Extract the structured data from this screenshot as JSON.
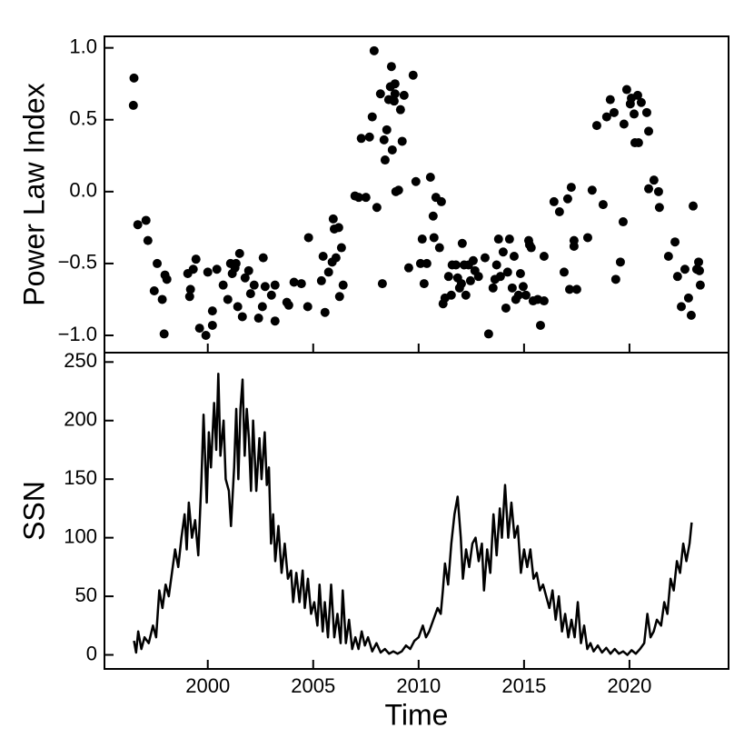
{
  "chart_data": [
    {
      "type": "scatter",
      "ylabel": "Power Law Index",
      "color": "#000000",
      "xlim": [
        1995.1,
        2024.7
      ],
      "xticks": [
        2000,
        2005,
        2010,
        2015,
        2020
      ],
      "xtick_labels": false,
      "ylim": [
        -1.12,
        1.08
      ],
      "yticks": [
        {
          "value": -1,
          "label": "−1.0"
        },
        {
          "value": -0.5,
          "label": "−0.5"
        },
        {
          "value": 0,
          "label": "0.0"
        },
        {
          "value": 0.5,
          "label": "0.5"
        },
        {
          "value": 1,
          "label": "1.0"
        }
      ],
      "x": [
        1996.47,
        1996.5,
        1996.68,
        1997.07,
        1997.16,
        1997.46,
        1997.6,
        1997.84,
        1997.93,
        1997.97,
        1998.06,
        1999.05,
        1999.14,
        1999.18,
        1999.31,
        1999.44,
        1999.61,
        1999.91,
        2000,
        2000.22,
        2000.22,
        2000.43,
        2000.73,
        2000.95,
        2001.08,
        2001.16,
        2001.29,
        2001.34,
        2001.42,
        2001.51,
        2001.64,
        2001.77,
        2001.94,
        2002.03,
        2002.2,
        2002.41,
        2002.59,
        2002.63,
        2002.72,
        2003.02,
        2003.19,
        2003.19,
        2003.75,
        2003.84,
        2004.09,
        2004.44,
        2004.78,
        2004.74,
        2005.39,
        2005.47,
        2005.56,
        2005.73,
        2005.9,
        2005.95,
        2006.0,
        2006.08,
        2006.21,
        2006.25,
        2006.34,
        2006.42,
        2006.98,
        2007.16,
        2007.28,
        2007.5,
        2007.67,
        2007.8,
        2007.89,
        2008.02,
        2008.19,
        2008.28,
        2008.36,
        2008.41,
        2008.49,
        2008.58,
        2008.66,
        2008.71,
        2008.75,
        2008.84,
        2008.88,
        2008.88,
        2008.92,
        2009.05,
        2009.14,
        2009.22,
        2009.31,
        2009.53,
        2009.74,
        2009.87,
        2010.09,
        2010.17,
        2010.26,
        2010.39,
        2010.56,
        2010.69,
        2010.73,
        2010.82,
        2010.99,
        2011.08,
        2011.16,
        2011.25,
        2011.42,
        2011.55,
        2011.59,
        2011.77,
        2011.85,
        2011.94,
        2012.03,
        2012.07,
        2012.16,
        2012.24,
        2012.37,
        2012.46,
        2012.59,
        2012.67,
        2012.84,
        2013.15,
        2013.32,
        2013.53,
        2013.62,
        2013.7,
        2013.79,
        2013.88,
        2014.01,
        2014.14,
        2014.22,
        2014.31,
        2014.44,
        2014.53,
        2014.61,
        2014.74,
        2014.83,
        2014.96,
        2015.09,
        2015.22,
        2015.26,
        2015.34,
        2015.43,
        2015.65,
        2015.78,
        2015.95,
        2015.95,
        2016.42,
        2016.68,
        2016.9,
        2017.07,
        2017.16,
        2017.24,
        2017.37,
        2017.37,
        2017.5,
        2018.02,
        2018.23,
        2018.45,
        2018.75,
        2018.92,
        2019.09,
        2019.27,
        2019.35,
        2019.57,
        2019.7,
        2019.74,
        2019.87,
        2020.04,
        2020.09,
        2020.22,
        2020.26,
        2020.39,
        2020.43,
        2020.56,
        2020.82,
        2020.91,
        2020.91,
        2021.16,
        2021.38,
        2021.42,
        2021.85,
        2022.16,
        2022.28,
        2022.46,
        2022.63,
        2022.8,
        2022.93,
        2023.02,
        2023.19,
        2023.28,
        2023.32,
        2023.36
      ],
      "values": [
        0.6,
        0.79,
        -0.23,
        -0.2,
        -0.34,
        -0.69,
        -0.5,
        -0.75,
        -0.99,
        -0.58,
        -0.61,
        -0.57,
        -0.73,
        -0.68,
        -0.54,
        -0.47,
        -0.95,
        -1.0,
        -0.56,
        -0.93,
        -0.83,
        -0.54,
        -0.65,
        -0.75,
        -0.5,
        -0.57,
        -0.53,
        -0.5,
        -0.8,
        -0.43,
        -0.87,
        -0.6,
        -0.55,
        -0.71,
        -0.65,
        -0.88,
        -0.8,
        -0.46,
        -0.66,
        -0.72,
        -0.9,
        -0.65,
        -0.77,
        -0.79,
        -0.63,
        -0.64,
        -0.32,
        -0.8,
        -0.62,
        -0.45,
        -0.84,
        -0.56,
        -0.49,
        -0.19,
        -0.26,
        -0.46,
        -0.25,
        -0.73,
        -0.39,
        -0.65,
        -0.03,
        -0.04,
        0.37,
        -0.04,
        0.38,
        0.52,
        0.98,
        -0.11,
        0.68,
        -0.64,
        0.36,
        0.22,
        0.43,
        0.64,
        0.73,
        0.87,
        0.29,
        0.63,
        0.75,
        0.68,
        0.0,
        0.01,
        0.57,
        0.35,
        0.67,
        -0.53,
        0.81,
        0.07,
        -0.5,
        -0.33,
        -0.64,
        -0.5,
        0.1,
        -0.17,
        -0.32,
        -0.04,
        -0.39,
        -0.07,
        -0.78,
        -0.74,
        -0.59,
        -0.72,
        -0.51,
        -0.51,
        -0.6,
        -0.67,
        -0.64,
        -0.36,
        -0.51,
        -0.72,
        -0.51,
        -0.62,
        -0.48,
        -0.55,
        -0.59,
        -0.46,
        -0.99,
        -0.67,
        -0.61,
        -0.51,
        -0.33,
        -0.59,
        -0.42,
        -0.81,
        -0.56,
        -0.33,
        -0.67,
        -0.45,
        -0.75,
        -0.72,
        -0.57,
        -0.66,
        -0.72,
        -0.34,
        -0.37,
        -0.39,
        -0.76,
        -0.75,
        -0.93,
        -0.76,
        -0.45,
        -0.07,
        -0.14,
        -0.56,
        -0.05,
        -0.68,
        0.03,
        -0.34,
        -0.38,
        -0.68,
        -0.32,
        0.01,
        0.46,
        -0.09,
        0.52,
        0.64,
        0.55,
        -0.61,
        -0.49,
        -0.21,
        0.47,
        0.71,
        0.61,
        0.65,
        0.54,
        0.34,
        0.67,
        0.34,
        0.62,
        0.55,
        0.42,
        0.02,
        0.08,
        0.0,
        -0.11,
        -0.45,
        -0.35,
        -0.59,
        -0.8,
        -0.54,
        -0.74,
        -0.86,
        -0.1,
        -0.54,
        -0.49,
        -0.55,
        -0.65
      ]
    },
    {
      "type": "line",
      "ylabel": "SSN",
      "xlabel": "Time",
      "color": "#000000",
      "xlim": [
        1995.1,
        2024.7
      ],
      "xticks": [
        2000,
        2005,
        2010,
        2015,
        2020
      ],
      "ylim": [
        -12,
        258
      ],
      "yticks": [
        0,
        50,
        100,
        150,
        200,
        250
      ],
      "x": [
        1996.5,
        1996.6,
        1996.7,
        1996.85,
        1997.0,
        1997.2,
        1997.4,
        1997.55,
        1997.7,
        1997.85,
        1998.0,
        1998.15,
        1998.3,
        1998.45,
        1998.6,
        1998.75,
        1998.9,
        1999.0,
        1999.1,
        1999.25,
        1999.4,
        1999.55,
        1999.7,
        1999.8,
        1999.95,
        2000.05,
        2000.15,
        2000.3,
        2000.4,
        2000.5,
        2000.6,
        2000.75,
        2000.85,
        2001.0,
        2001.1,
        2001.25,
        2001.35,
        2001.45,
        2001.55,
        2001.65,
        2001.75,
        2001.85,
        2001.95,
        2002.05,
        2002.15,
        2002.3,
        2002.45,
        2002.55,
        2002.7,
        2002.8,
        2002.9,
        2003.0,
        2003.1,
        2003.2,
        2003.35,
        2003.5,
        2003.65,
        2003.8,
        2003.95,
        2004.05,
        2004.2,
        2004.35,
        2004.5,
        2004.6,
        2004.75,
        2004.9,
        2005.05,
        2005.2,
        2005.3,
        2005.45,
        2005.55,
        2005.7,
        2005.85,
        2006.0,
        2006.15,
        2006.3,
        2006.4,
        2006.55,
        2006.7,
        2006.85,
        2007.0,
        2007.15,
        2007.3,
        2007.45,
        2007.6,
        2007.8,
        2008.0,
        2008.2,
        2008.4,
        2008.6,
        2008.8,
        2009.0,
        2009.2,
        2009.4,
        2009.6,
        2009.8,
        2010.0,
        2010.2,
        2010.35,
        2010.5,
        2010.7,
        2010.9,
        2011.05,
        2011.15,
        2011.25,
        2011.4,
        2011.55,
        2011.7,
        2011.85,
        2012.0,
        2012.1,
        2012.25,
        2012.4,
        2012.55,
        2012.7,
        2012.85,
        2013.0,
        2013.1,
        2013.25,
        2013.4,
        2013.55,
        2013.7,
        2013.85,
        2013.95,
        2014.1,
        2014.25,
        2014.4,
        2014.55,
        2014.7,
        2014.85,
        2015.0,
        2015.15,
        2015.3,
        2015.45,
        2015.6,
        2015.75,
        2015.9,
        2016.05,
        2016.2,
        2016.35,
        2016.5,
        2016.65,
        2016.8,
        2016.95,
        2017.1,
        2017.25,
        2017.4,
        2017.55,
        2017.7,
        2017.85,
        2018.0,
        2018.15,
        2018.3,
        2018.5,
        2018.7,
        2018.9,
        2019.1,
        2019.3,
        2019.5,
        2019.7,
        2019.9,
        2020.1,
        2020.3,
        2020.5,
        2020.7,
        2020.85,
        2021.0,
        2021.15,
        2021.3,
        2021.5,
        2021.65,
        2021.8,
        2021.95,
        2022.1,
        2022.25,
        2022.4,
        2022.55,
        2022.7,
        2022.85,
        2022.95
      ],
      "values": [
        12,
        2,
        20,
        5,
        15,
        10,
        25,
        15,
        55,
        40,
        60,
        50,
        70,
        90,
        75,
        100,
        120,
        90,
        130,
        100,
        115,
        85,
        150,
        205,
        130,
        190,
        160,
        215,
        175,
        240,
        170,
        200,
        150,
        140,
        110,
        160,
        210,
        150,
        210,
        235,
        170,
        210,
        185,
        140,
        200,
        140,
        185,
        150,
        190,
        145,
        160,
        95,
        120,
        80,
        110,
        70,
        95,
        65,
        72,
        45,
        70,
        45,
        72,
        40,
        65,
        35,
        45,
        25,
        60,
        20,
        45,
        15,
        60,
        15,
        35,
        10,
        55,
        10,
        30,
        5,
        15,
        5,
        20,
        8,
        15,
        3,
        10,
        2,
        5,
        1,
        3,
        1,
        3,
        8,
        5,
        12,
        15,
        25,
        15,
        20,
        30,
        40,
        35,
        55,
        78,
        60,
        95,
        120,
        135,
        100,
        65,
        90,
        75,
        95,
        100,
        80,
        95,
        55,
        90,
        70,
        120,
        85,
        125,
        100,
        145,
        100,
        130,
        100,
        110,
        70,
        90,
        75,
        90,
        65,
        70,
        55,
        60,
        50,
        40,
        55,
        30,
        50,
        20,
        35,
        15,
        30,
        15,
        45,
        10,
        25,
        5,
        10,
        3,
        8,
        2,
        6,
        1,
        5,
        1,
        3,
        0,
        4,
        1,
        5,
        10,
        35,
        15,
        20,
        30,
        25,
        45,
        35,
        65,
        55,
        80,
        70,
        95,
        80,
        95,
        113
      ]
    }
  ]
}
